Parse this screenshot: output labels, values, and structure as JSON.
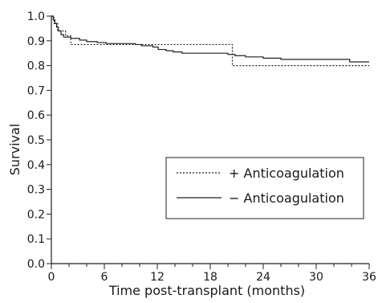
{
  "chart_data": {
    "type": "line",
    "xlabel": "Time post-transplant (months)",
    "ylabel": "Survival",
    "xlim": [
      0,
      36
    ],
    "ylim": [
      0,
      1.0
    ],
    "x_ticks": [
      0,
      6,
      12,
      18,
      24,
      30,
      36
    ],
    "y_ticks": [
      "0.0",
      "0.1",
      "0.2",
      "0.3",
      "0.4",
      "0.5",
      "0.6",
      "0.7",
      "0.8",
      "0.9",
      "1.0"
    ],
    "grid": false,
    "legend_position": "right, lower-middle",
    "series": [
      {
        "name": "+ Anticoagulation",
        "style": "dotted",
        "color": "#222222",
        "steps": [
          [
            0,
            1.0
          ],
          [
            0.3,
            0.97
          ],
          [
            0.7,
            0.94
          ],
          [
            1.6,
            0.92
          ],
          [
            2.2,
            0.885
          ],
          [
            20.5,
            0.8
          ],
          [
            36,
            0.8
          ]
        ]
      },
      {
        "name": "− Anticoagulation",
        "style": "solid",
        "color": "#222222",
        "steps": [
          [
            0,
            1.0
          ],
          [
            0.2,
            0.985
          ],
          [
            0.4,
            0.97
          ],
          [
            0.6,
            0.955
          ],
          [
            0.8,
            0.94
          ],
          [
            1.1,
            0.925
          ],
          [
            1.4,
            0.915
          ],
          [
            2.2,
            0.91
          ],
          [
            3.2,
            0.903
          ],
          [
            4.0,
            0.897
          ],
          [
            5.2,
            0.893
          ],
          [
            6.2,
            0.889
          ],
          [
            9.5,
            0.885
          ],
          [
            10.2,
            0.88
          ],
          [
            11.5,
            0.875
          ],
          [
            12.1,
            0.865
          ],
          [
            13.0,
            0.86
          ],
          [
            13.8,
            0.855
          ],
          [
            14.8,
            0.85
          ],
          [
            20.0,
            0.845
          ],
          [
            20.8,
            0.84
          ],
          [
            22.0,
            0.835
          ],
          [
            24.0,
            0.83
          ],
          [
            26.0,
            0.825
          ],
          [
            33.8,
            0.815
          ],
          [
            36,
            0.815
          ]
        ]
      }
    ]
  }
}
